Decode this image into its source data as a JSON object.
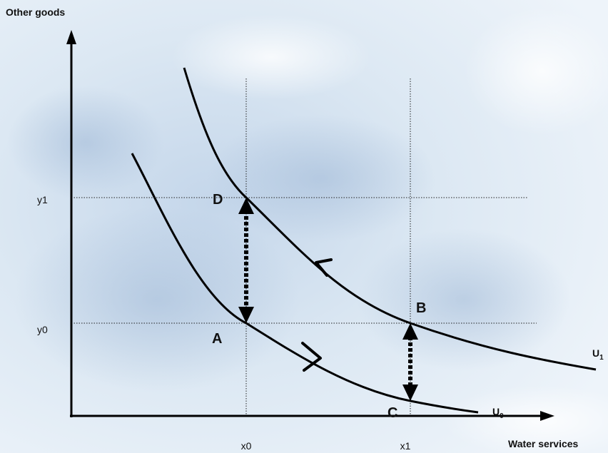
{
  "axes": {
    "y_label": "Other goods",
    "x_label": "Water services"
  },
  "ticks": {
    "x": [
      "x0",
      "x1"
    ],
    "y": [
      "y0",
      "y1"
    ]
  },
  "points": {
    "A": "A",
    "B": "B",
    "C": "C",
    "D": "D"
  },
  "curves": [
    {
      "name": "U",
      "subscript": "0"
    },
    {
      "name": "U",
      "subscript": "1"
    }
  ]
}
